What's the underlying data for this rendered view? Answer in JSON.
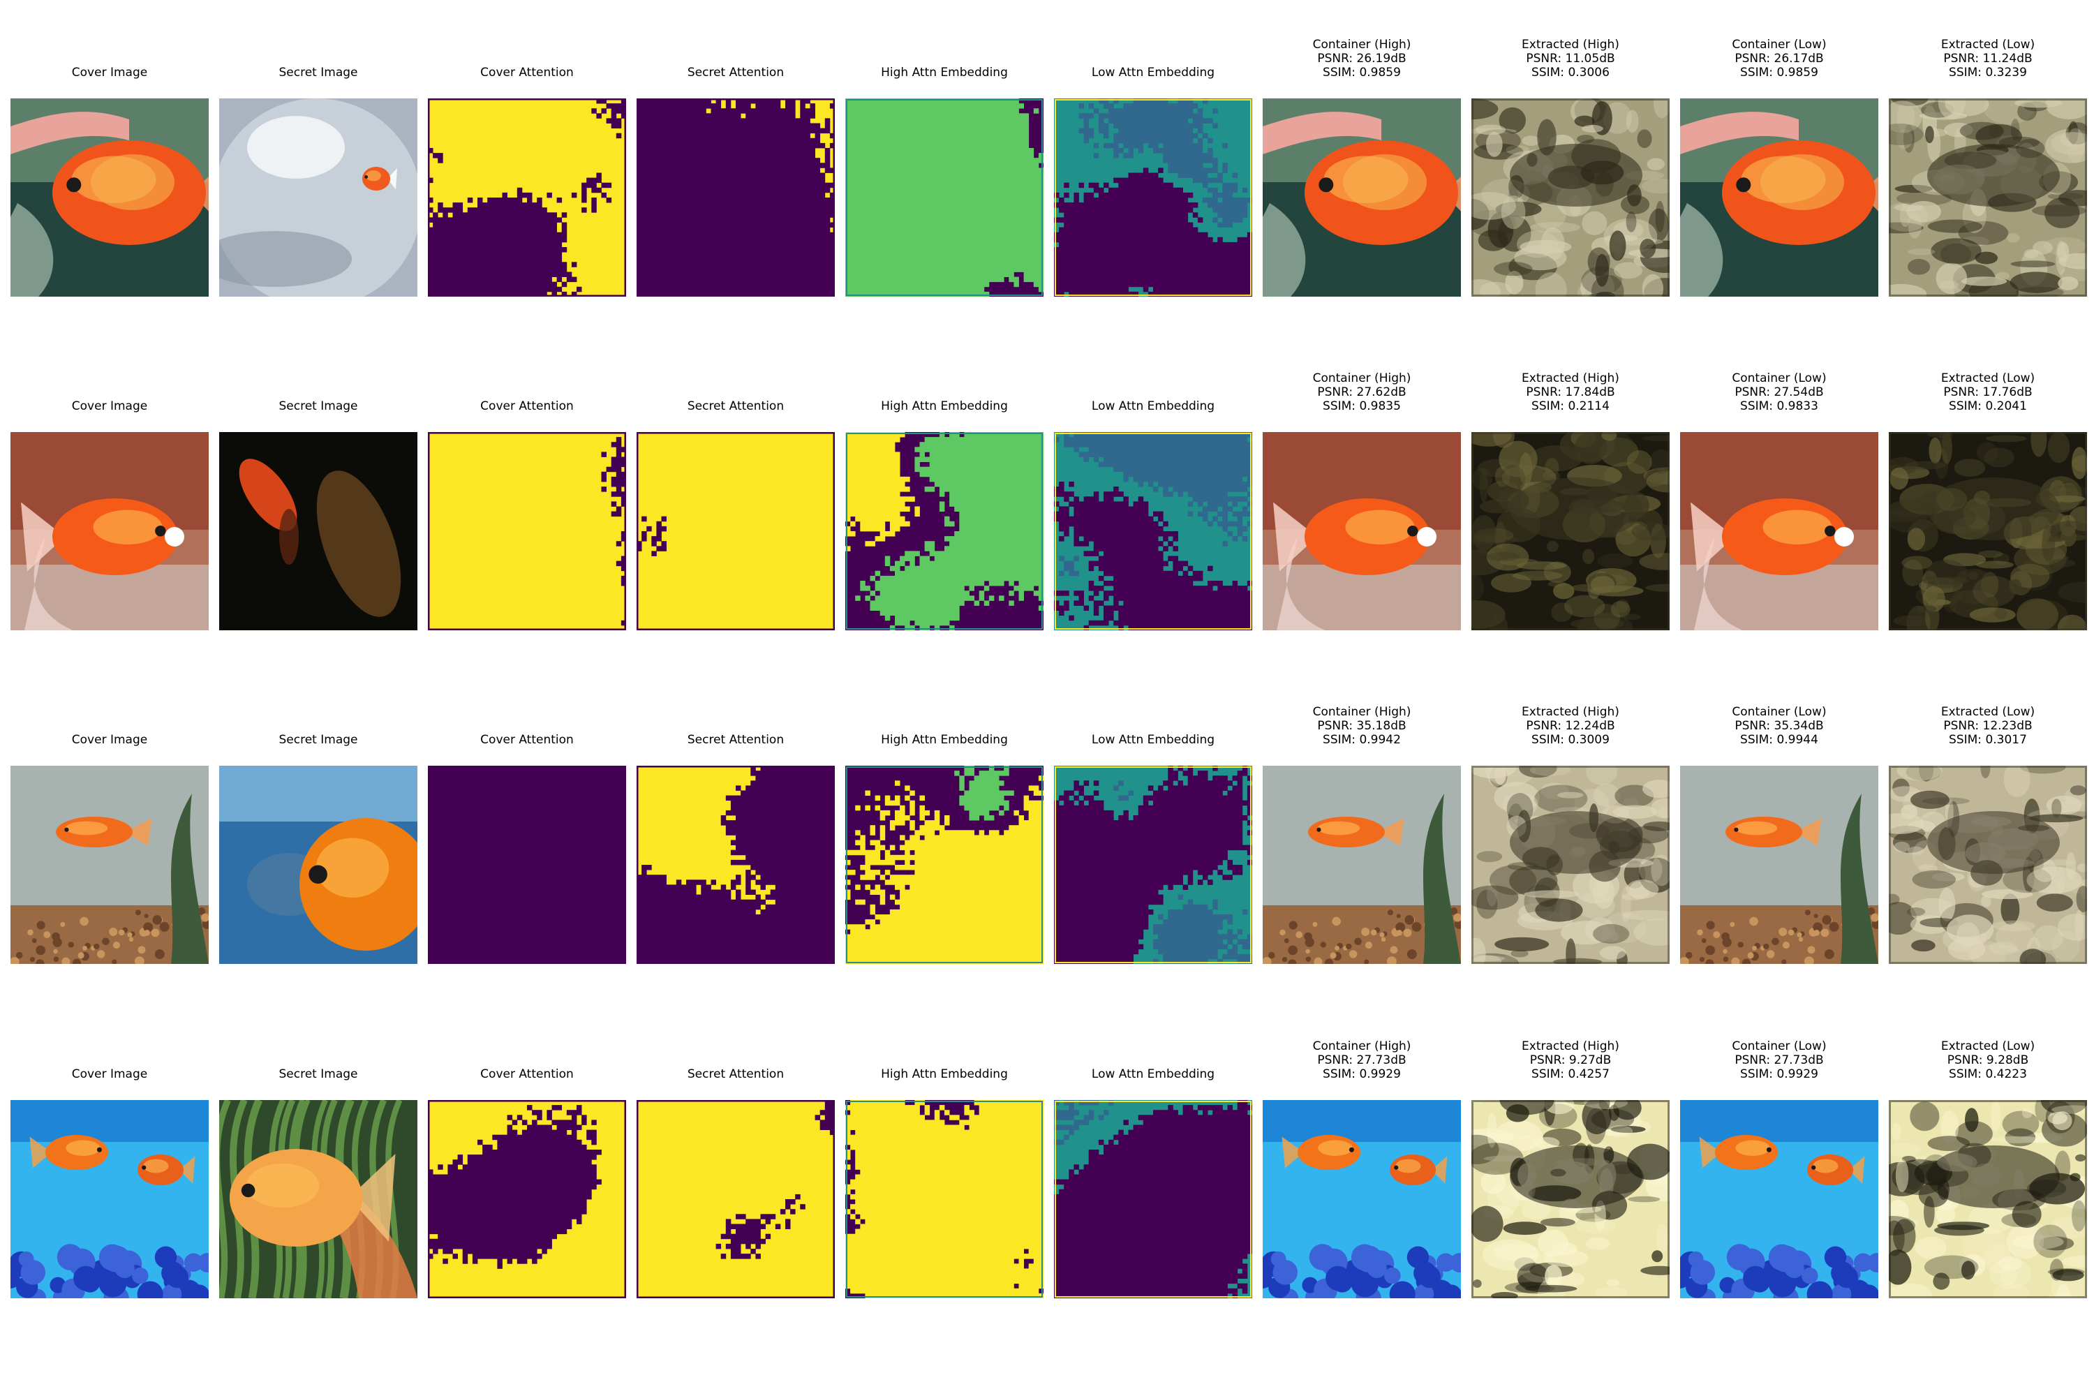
{
  "figure": {
    "rows": [
      {
        "panels": [
          {
            "kind": "cover",
            "title": [
              "Cover Image"
            ],
            "scene": "hand-goldfish"
          },
          {
            "kind": "secret",
            "title": [
              "Secret Image"
            ],
            "scene": "bowl-fish"
          },
          {
            "kind": "mask",
            "title": [
              "Cover Attention"
            ],
            "pattern": "cover-attn-1"
          },
          {
            "kind": "mask",
            "title": [
              "Secret Attention"
            ],
            "pattern": "secret-attn-1"
          },
          {
            "kind": "embed-high",
            "title": [
              "High Attn Embedding"
            ],
            "pattern": "embed-high-1"
          },
          {
            "kind": "embed-low",
            "title": [
              "Low Attn Embedding"
            ],
            "pattern": "embed-low-1"
          },
          {
            "kind": "container",
            "title": [
              "Container (High)",
              "PSNR: 26.19dB",
              "SSIM: 0.9859"
            ],
            "scene": "hand-goldfish"
          },
          {
            "kind": "extracted",
            "title": [
              "Extracted (High)",
              "PSNR: 11.05dB",
              "SSIM: 0.3006"
            ],
            "tone": "olive"
          },
          {
            "kind": "container",
            "title": [
              "Container (Low)",
              "PSNR: 26.17dB",
              "SSIM: 0.9859"
            ],
            "scene": "hand-goldfish"
          },
          {
            "kind": "extracted",
            "title": [
              "Extracted (Low)",
              "PSNR: 11.24dB",
              "SSIM: 0.3239"
            ],
            "tone": "olive"
          }
        ]
      },
      {
        "panels": [
          {
            "kind": "cover",
            "title": [
              "Cover Image"
            ],
            "scene": "red-goldfish"
          },
          {
            "kind": "secret",
            "title": [
              "Secret Image"
            ],
            "scene": "dark-fish"
          },
          {
            "kind": "mask",
            "title": [
              "Cover Attention"
            ],
            "pattern": "cover-attn-2"
          },
          {
            "kind": "mask",
            "title": [
              "Secret Attention"
            ],
            "pattern": "secret-attn-2"
          },
          {
            "kind": "embed-high",
            "title": [
              "High Attn Embedding"
            ],
            "pattern": "embed-high-2"
          },
          {
            "kind": "embed-low",
            "title": [
              "Low Attn Embedding"
            ],
            "pattern": "embed-low-2"
          },
          {
            "kind": "container",
            "title": [
              "Container (High)",
              "PSNR: 27.62dB",
              "SSIM: 0.9835"
            ],
            "scene": "red-goldfish"
          },
          {
            "kind": "extracted",
            "title": [
              "Extracted (High)",
              "PSNR: 17.84dB",
              "SSIM: 0.2114"
            ],
            "tone": "dark"
          },
          {
            "kind": "container",
            "title": [
              "Container (Low)",
              "PSNR: 27.54dB",
              "SSIM: 0.9833"
            ],
            "scene": "red-goldfish"
          },
          {
            "kind": "extracted",
            "title": [
              "Extracted (Low)",
              "PSNR: 17.76dB",
              "SSIM: 0.2041"
            ],
            "tone": "dark"
          }
        ]
      },
      {
        "panels": [
          {
            "kind": "cover",
            "title": [
              "Cover Image"
            ],
            "scene": "tank-fish"
          },
          {
            "kind": "secret",
            "title": [
              "Secret Image"
            ],
            "scene": "blue-goldfish"
          },
          {
            "kind": "mask",
            "title": [
              "Cover Attention"
            ],
            "pattern": "cover-attn-3"
          },
          {
            "kind": "mask",
            "title": [
              "Secret Attention"
            ],
            "pattern": "secret-attn-3"
          },
          {
            "kind": "embed-high",
            "title": [
              "High Attn Embedding"
            ],
            "pattern": "embed-high-3"
          },
          {
            "kind": "embed-low",
            "title": [
              "Low Attn Embedding"
            ],
            "pattern": "embed-low-3"
          },
          {
            "kind": "container",
            "title": [
              "Container (High)",
              "PSNR: 35.18dB",
              "SSIM: 0.9942"
            ],
            "scene": "tank-fish"
          },
          {
            "kind": "extracted",
            "title": [
              "Extracted (High)",
              "PSNR: 12.24dB",
              "SSIM: 0.3009"
            ],
            "tone": "khaki"
          },
          {
            "kind": "container",
            "title": [
              "Container (Low)",
              "PSNR: 35.34dB",
              "SSIM: 0.9944"
            ],
            "scene": "tank-fish"
          },
          {
            "kind": "extracted",
            "title": [
              "Extracted (Low)",
              "PSNR: 12.23dB",
              "SSIM: 0.3017"
            ],
            "tone": "khaki"
          }
        ]
      },
      {
        "panels": [
          {
            "kind": "cover",
            "title": [
              "Cover Image"
            ],
            "scene": "blue-two-fish"
          },
          {
            "kind": "secret",
            "title": [
              "Secret Image"
            ],
            "scene": "plants-goldfish"
          },
          {
            "kind": "mask",
            "title": [
              "Cover Attention"
            ],
            "pattern": "cover-attn-4"
          },
          {
            "kind": "mask",
            "title": [
              "Secret Attention"
            ],
            "pattern": "secret-attn-4"
          },
          {
            "kind": "embed-high",
            "title": [
              "High Attn Embedding"
            ],
            "pattern": "embed-high-4"
          },
          {
            "kind": "embed-low",
            "title": [
              "Low Attn Embedding"
            ],
            "pattern": "embed-low-4"
          },
          {
            "kind": "container",
            "title": [
              "Container (High)",
              "PSNR: 27.73dB",
              "SSIM: 0.9929"
            ],
            "scene": "blue-two-fish"
          },
          {
            "kind": "extracted",
            "title": [
              "Extracted (High)",
              "PSNR: 9.27dB",
              "SSIM: 0.4257"
            ],
            "tone": "cream"
          },
          {
            "kind": "container",
            "title": [
              "Container (Low)",
              "PSNR: 27.73dB",
              "SSIM: 0.9929"
            ],
            "scene": "blue-two-fish"
          },
          {
            "kind": "extracted",
            "title": [
              "Extracted (Low)",
              "PSNR: 9.28dB",
              "SSIM: 0.4223"
            ],
            "tone": "cream"
          }
        ]
      }
    ],
    "colors": {
      "viridis_purple": "#440154",
      "viridis_teal": "#21918c",
      "viridis_blue": "#31688e",
      "viridis_green": "#5ec962",
      "viridis_yellow": "#fde725"
    }
  }
}
